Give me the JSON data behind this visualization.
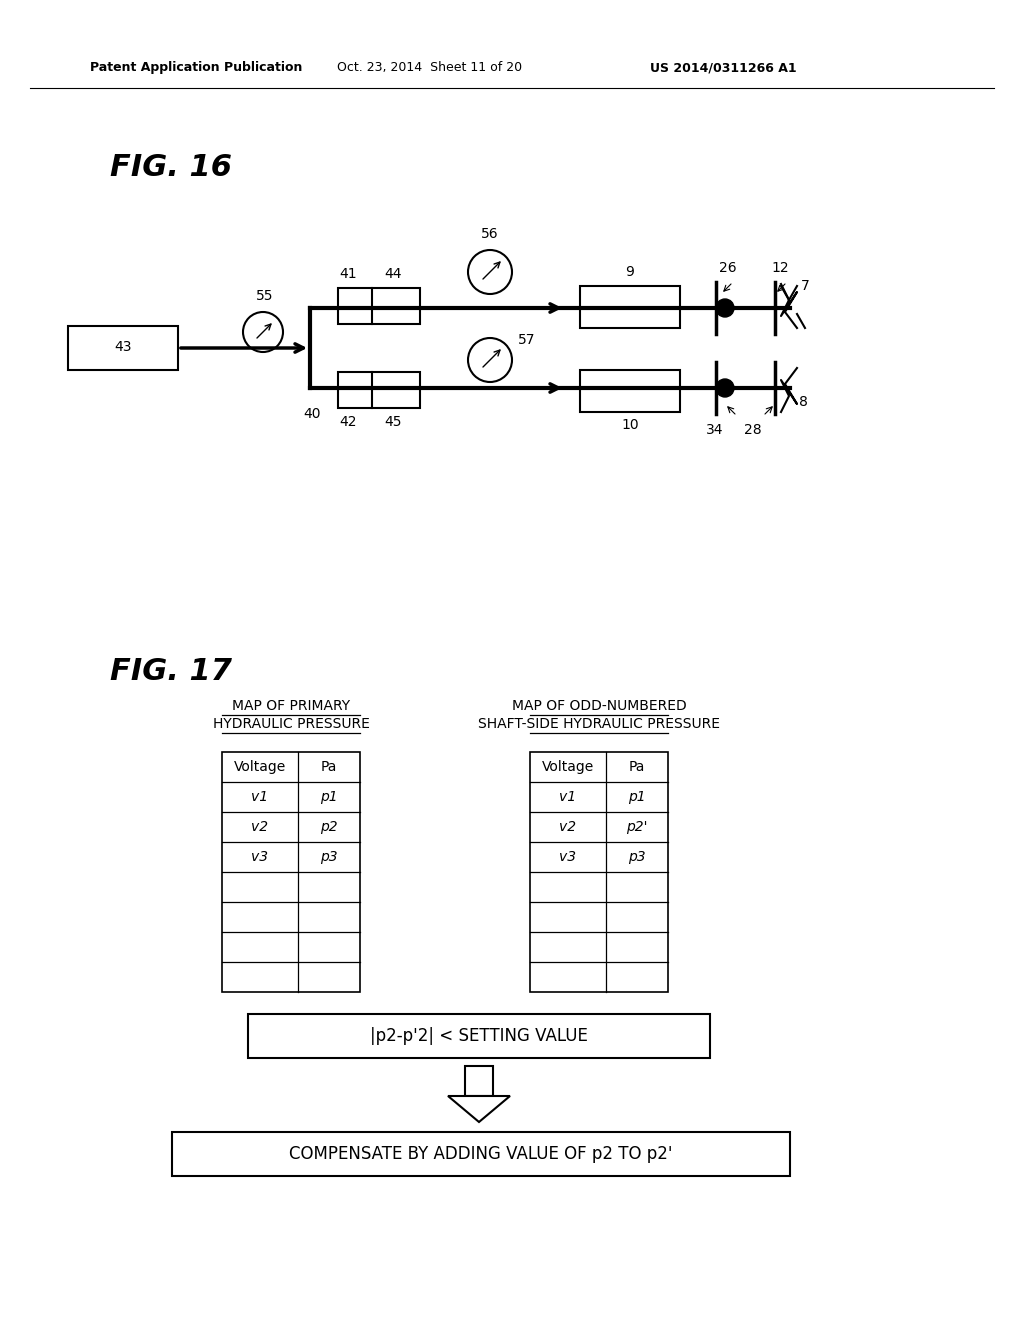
{
  "bg_color": "#ffffff",
  "header_left": "Patent Application Publication",
  "header_center": "Oct. 23, 2014  Sheet 11 of 20",
  "header_right": "US 2014/0311266 A1",
  "fig16_title": "FIG. 16",
  "fig17_title": "FIG. 17",
  "table1_title_line1": "MAP OF PRIMARY",
  "table1_title_line2": "HYDRAULIC PRESSURE",
  "table2_title_line1": "MAP OF ODD-NUMBERED",
  "table2_title_line2": "SHAFT-SIDE HYDRAULIC PRESSURE",
  "table1_header": [
    "Voltage",
    "Pa"
  ],
  "table1_rows": [
    [
      "v1",
      "p1"
    ],
    [
      "v2",
      "p2"
    ],
    [
      "v3",
      "p3"
    ],
    [
      "",
      ""
    ],
    [
      "",
      ""
    ],
    [
      "",
      ""
    ],
    [
      "",
      ""
    ]
  ],
  "table2_header": [
    "Voltage",
    "Pa"
  ],
  "table2_rows": [
    [
      "v1",
      "p1"
    ],
    [
      "v2",
      "p2'"
    ],
    [
      "v3",
      "p3"
    ],
    [
      "",
      ""
    ],
    [
      "",
      ""
    ],
    [
      "",
      ""
    ],
    [
      "",
      ""
    ]
  ],
  "box1_text": "|p2-p'2| < SETTING VALUE",
  "box2_text": "COMPENSATE BY ADDING VALUE OF p2 TO p2'"
}
